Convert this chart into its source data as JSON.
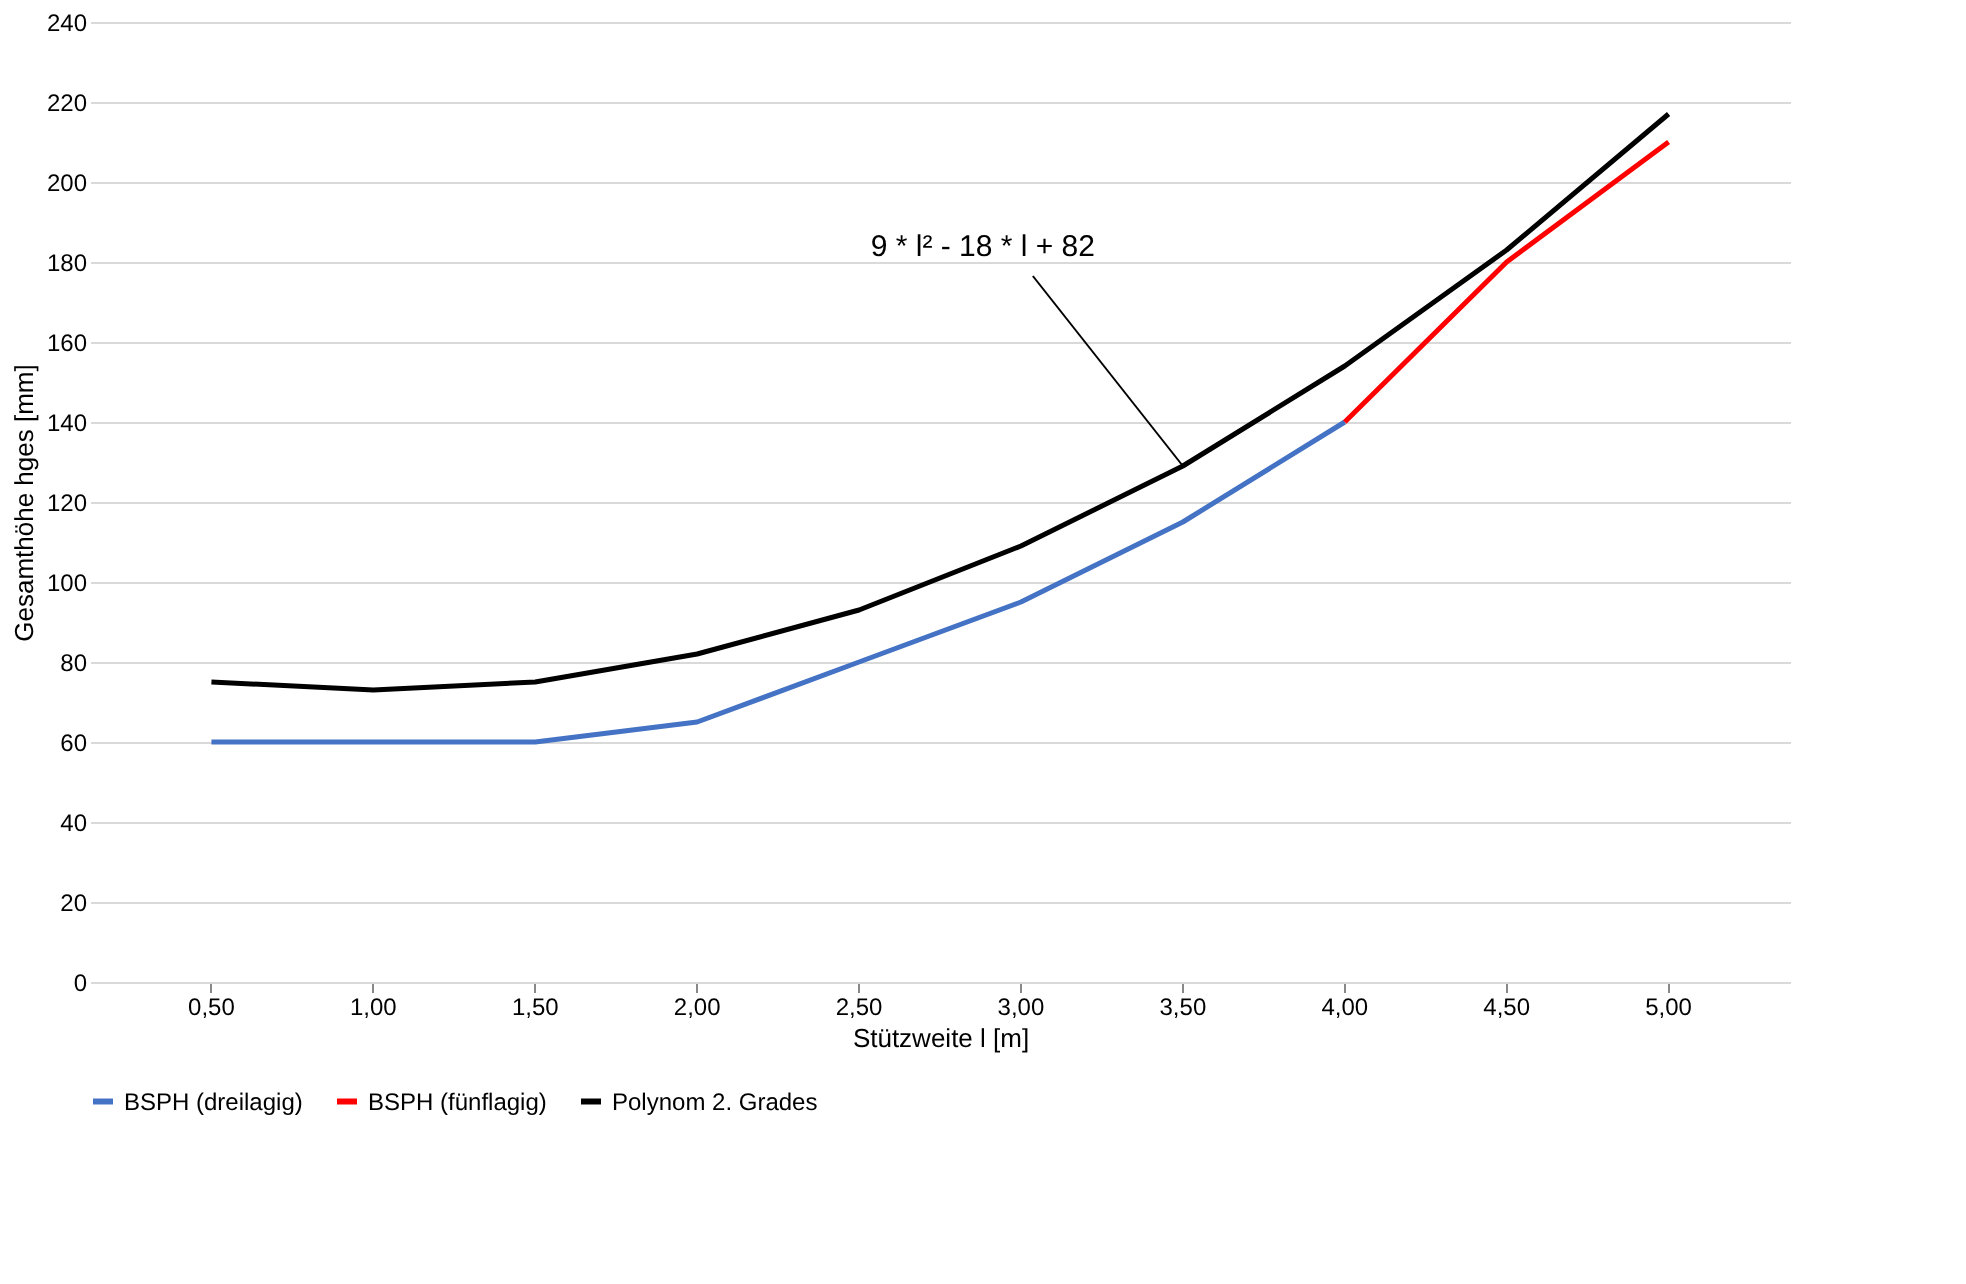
{
  "chart_data": {
    "type": "line",
    "xlabel": "Stützweite l [m]",
    "ylabel": "Gesamthöhe hges [mm]",
    "categories": [
      "0,50",
      "1,00",
      "1,50",
      "2,00",
      "2,50",
      "3,00",
      "3,50",
      "4,00",
      "4,50",
      "5,00"
    ],
    "series": [
      {
        "name": "BSPH (dreilagig)",
        "color": "#4472c4",
        "values": [
          60,
          60,
          60,
          65,
          80,
          95,
          115,
          140,
          null,
          null
        ]
      },
      {
        "name": "BSPH (fünflagig)",
        "color": "#ff0000",
        "values": [
          null,
          null,
          null,
          null,
          null,
          null,
          null,
          140,
          180,
          210
        ]
      },
      {
        "name": "Polynom 2. Grades",
        "color": "#000000",
        "values": [
          75,
          73,
          75,
          82,
          93,
          109,
          129,
          154,
          183,
          217
        ]
      }
    ],
    "ylim": [
      0,
      240
    ],
    "yticks": [
      0,
      20,
      40,
      60,
      80,
      100,
      120,
      140,
      160,
      180,
      200,
      220,
      240
    ],
    "grid": "y",
    "legend": "bottom",
    "marker": "none",
    "line_style": "solid",
    "annotations": [
      {
        "text": "9 * l² - 18 * l + 82",
        "x": "3,50",
        "y": 129
      }
    ]
  }
}
